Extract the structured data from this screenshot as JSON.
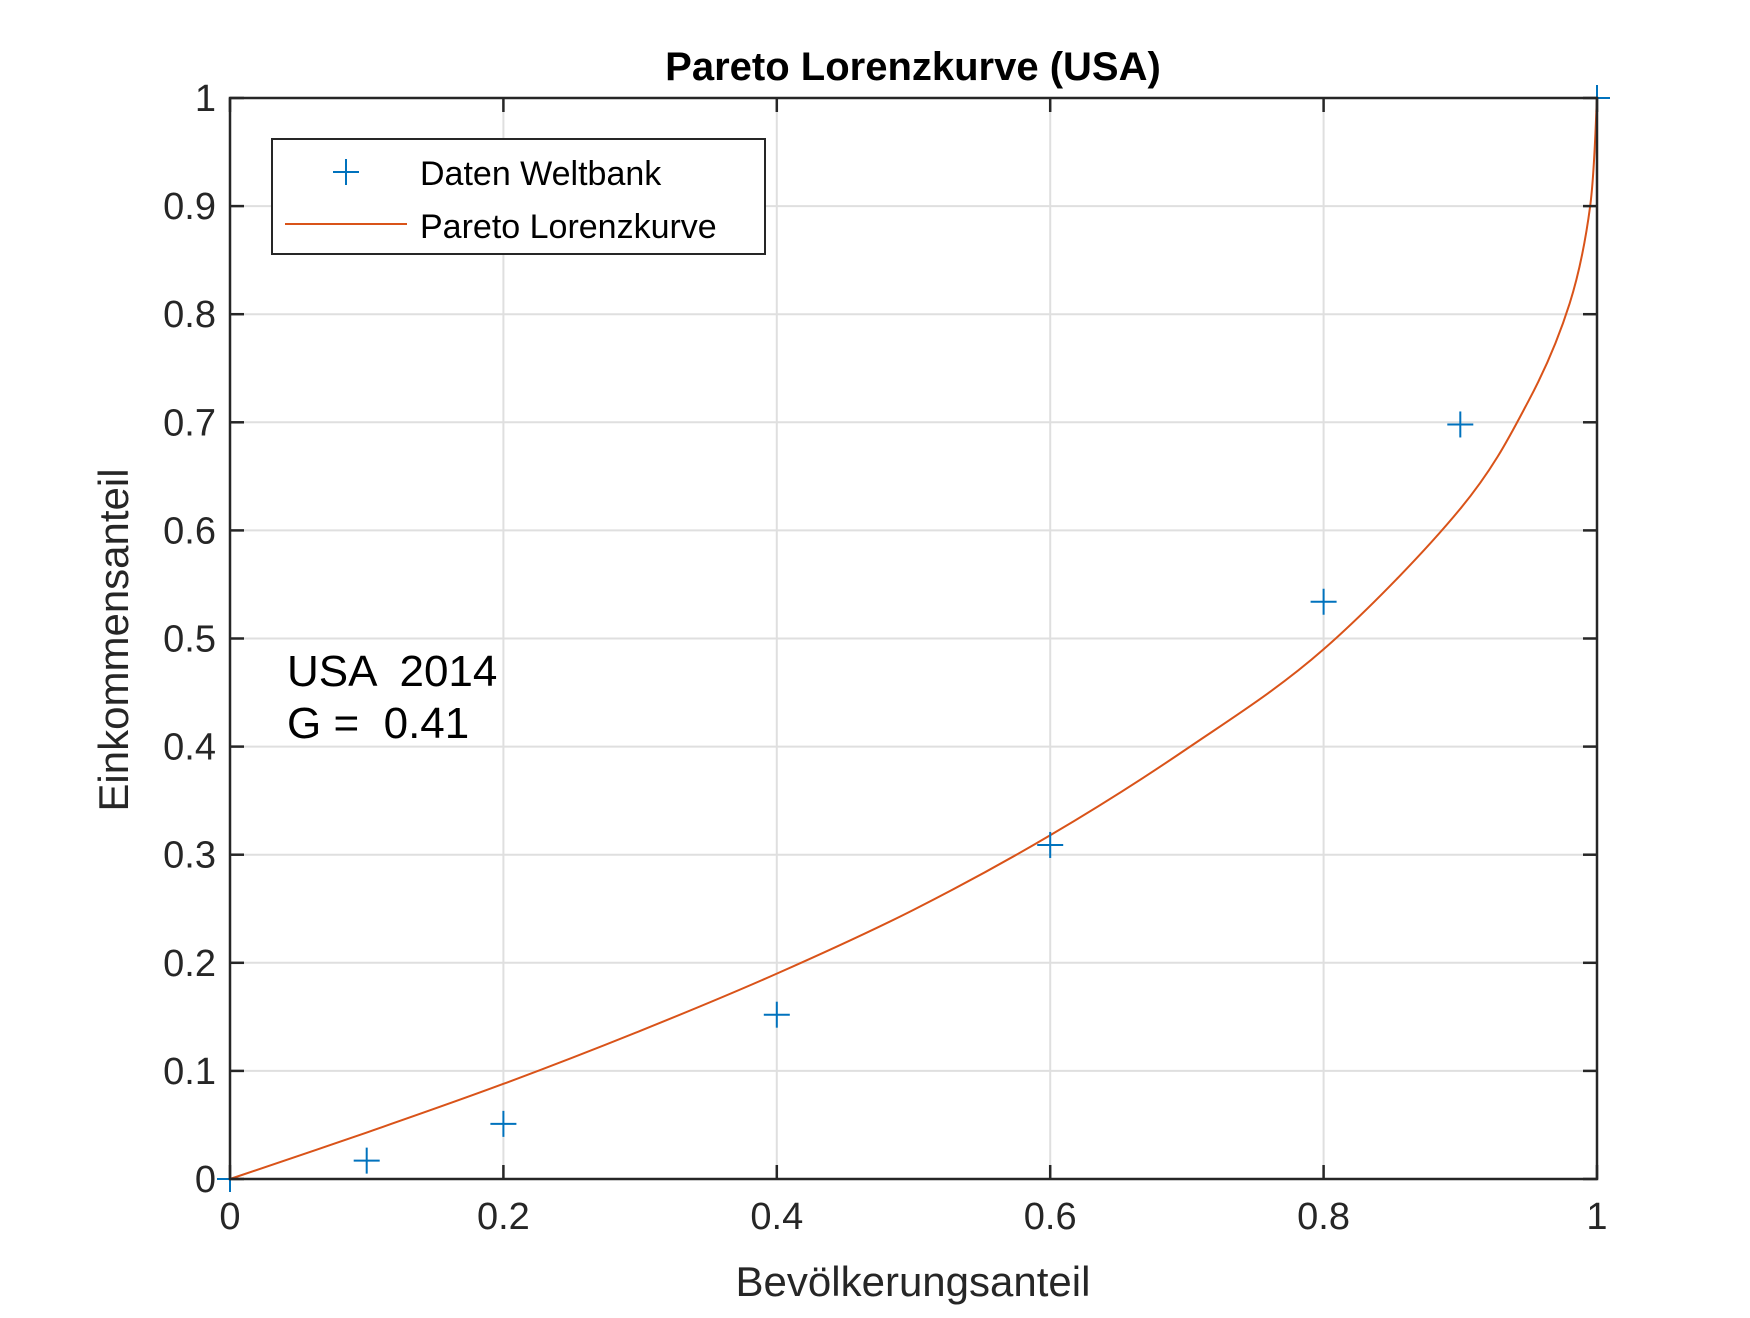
{
  "chart_data": {
    "type": "line",
    "title": "Pareto Lorenzkurve (USA)",
    "xlabel": "Bevölkerungsanteil",
    "ylabel": "Einkommensanteil",
    "xlim": [
      0,
      1
    ],
    "ylim": [
      0,
      1
    ],
    "xticks": [
      0,
      0.2,
      0.4,
      0.6,
      0.8,
      1
    ],
    "xtick_labels": [
      "0",
      "0.2",
      "0.4",
      "0.6",
      "0.8",
      "1"
    ],
    "yticks": [
      0,
      0.1,
      0.2,
      0.3,
      0.4,
      0.5,
      0.6,
      0.7,
      0.8,
      0.9,
      1
    ],
    "ytick_labels": [
      "0",
      "0.1",
      "0.2",
      "0.3",
      "0.4",
      "0.5",
      "0.6",
      "0.7",
      "0.8",
      "0.9",
      "1"
    ],
    "grid": true,
    "legend_position": "top-left",
    "series": [
      {
        "name": "Daten Weltbank",
        "kind": "scatter",
        "marker": "+",
        "color": "#0072BD",
        "x": [
          0,
          0.1,
          0.2,
          0.4,
          0.6,
          0.8,
          0.9,
          1
        ],
        "y": [
          0,
          0.017,
          0.051,
          0.152,
          0.309,
          0.534,
          0.698,
          1
        ]
      },
      {
        "name": "Pareto Lorenzkurve",
        "kind": "line",
        "color": "#D95319",
        "x": [
          0,
          0.1,
          0.2,
          0.3,
          0.4,
          0.5,
          0.6,
          0.7,
          0.8,
          0.9,
          0.95,
          0.98,
          0.995,
          1
        ],
        "y": [
          0,
          0.043,
          0.088,
          0.137,
          0.19,
          0.249,
          0.318,
          0.398,
          0.49,
          0.62,
          0.72,
          0.81,
          0.9,
          1
        ]
      }
    ],
    "annotations": [
      "USA  2014",
      "G =  0.41"
    ]
  }
}
